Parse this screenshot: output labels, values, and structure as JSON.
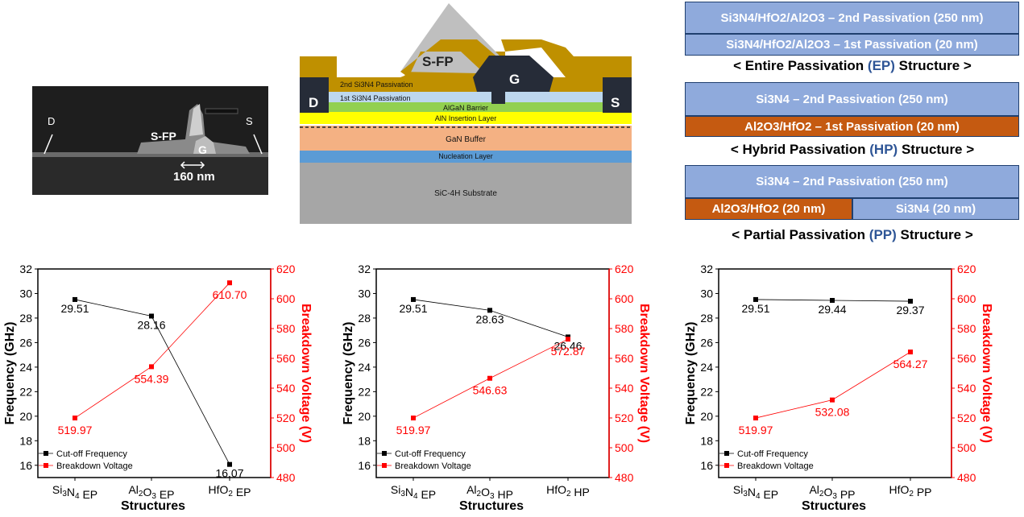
{
  "sem": {
    "label_d": "D",
    "label_s": "S",
    "label_sfp": "S-FP",
    "label_g": "G",
    "scale": "160 nm"
  },
  "cross_section": {
    "sfp": "S-FP",
    "gate": "G",
    "drain": "D",
    "source": "S",
    "second_pass": "2nd Si3N4 Passivation",
    "first_pass": "1st Si3N4 Passivation",
    "algan": "AlGaN Barrier",
    "aln": "AlN Insertion Layer",
    "gan": "GaN Buffer",
    "nucleation": "Nucleation Layer",
    "substrate": "SiC-4H Substrate",
    "colors": {
      "metal": "#bf9000",
      "gate": "#262c38",
      "sfp": "#bfbfbf",
      "pass2": "#ffc000",
      "pass1": "#bdd7ee",
      "algan": "#92d050",
      "aln": "#ffff00",
      "gan": "#f4b183",
      "nucleation": "#5b9bd5",
      "substrate": "#a6a6a6"
    }
  },
  "structures": {
    "ep_second": "Si3N4/HfO2/Al2O3  – 2nd Passivation (250 nm)",
    "ep_first": "Si3N4/HfO2/Al2O3  – 1st Passivation (20 nm)",
    "ep_caption_a": "< Entire Passivation ",
    "ep_caption_acc": "(EP)",
    "ep_caption_b": " Structure >",
    "hp_second": "Si3N4 – 2nd Passivation (250 nm)",
    "hp_first": "Al2O3/HfO2 – 1st Passivation (20 nm)",
    "hp_caption_a": "< Hybrid Passivation ",
    "hp_caption_acc": "(HP)",
    "hp_caption_b": " Structure >",
    "pp_second": "Si3N4 – 2nd Passivation (250 nm)",
    "pp_left": "Al2O3/HfO2 (20 nm)",
    "pp_right": "Si3N4 (20 nm)",
    "pp_caption_a": "< Partial Passivation ",
    "pp_caption_acc": "(PP)",
    "pp_caption_b": " Structure >",
    "colors": {
      "blue": "#8faadc",
      "orange": "#c55a11",
      "accent": "#2e5596"
    }
  },
  "chart_data": [
    {
      "type": "line",
      "xlabel": "Structures",
      "ylabel_left": "Frequency (GHz)",
      "ylabel_right": "Breakdown Voltage (V)",
      "categories": [
        "Si3N4 EP",
        "Al2O3 EP",
        "HfO2 EP"
      ],
      "ylim_left": [
        15,
        32
      ],
      "ylim_right": [
        480,
        620
      ],
      "series": [
        {
          "name": "Cut-off Frequency",
          "axis": "left",
          "color": "#000000",
          "values": [
            29.51,
            28.16,
            16.07
          ],
          "labels": [
            "29.51",
            "28.16",
            "16.07"
          ]
        },
        {
          "name": "Breakdown Voltage",
          "axis": "right",
          "color": "#ff0000",
          "values": [
            519.97,
            554.39,
            610.7
          ],
          "labels": [
            "519.97",
            "554.39",
            "610.70"
          ]
        }
      ]
    },
    {
      "type": "line",
      "xlabel": "Structures",
      "ylabel_left": "Frequency (GHz)",
      "ylabel_right": "Breakdown Voltage (V)",
      "categories": [
        "Si3N4 EP",
        "Al2O3 HP",
        "HfO2 HP"
      ],
      "ylim_left": [
        15,
        32
      ],
      "ylim_right": [
        480,
        620
      ],
      "series": [
        {
          "name": "Cut-off Frequency",
          "axis": "left",
          "color": "#000000",
          "values": [
            29.51,
            28.63,
            26.46
          ],
          "labels": [
            "29.51",
            "28.63",
            "26.46"
          ]
        },
        {
          "name": "Breakdown Voltage",
          "axis": "right",
          "color": "#ff0000",
          "values": [
            519.97,
            546.63,
            572.87
          ],
          "labels": [
            "519.97",
            "546.63",
            "572.87"
          ]
        }
      ]
    },
    {
      "type": "line",
      "xlabel": "Structures",
      "ylabel_left": "Frequency (GHz)",
      "ylabel_right": "Breakdown Voltage (V)",
      "categories": [
        "Si3N4 EP",
        "Al2O3 PP",
        "HfO2 PP"
      ],
      "ylim_left": [
        15,
        32
      ],
      "ylim_right": [
        480,
        620
      ],
      "series": [
        {
          "name": "Cut-off Frequency",
          "axis": "left",
          "color": "#000000",
          "values": [
            29.51,
            29.44,
            29.37
          ],
          "labels": [
            "29.51",
            "29.44",
            "29.37"
          ]
        },
        {
          "name": "Breakdown Voltage",
          "axis": "right",
          "color": "#ff0000",
          "values": [
            519.97,
            532.08,
            564.27
          ],
          "labels": [
            "519.97",
            "532.08",
            "564.27"
          ]
        }
      ]
    }
  ]
}
